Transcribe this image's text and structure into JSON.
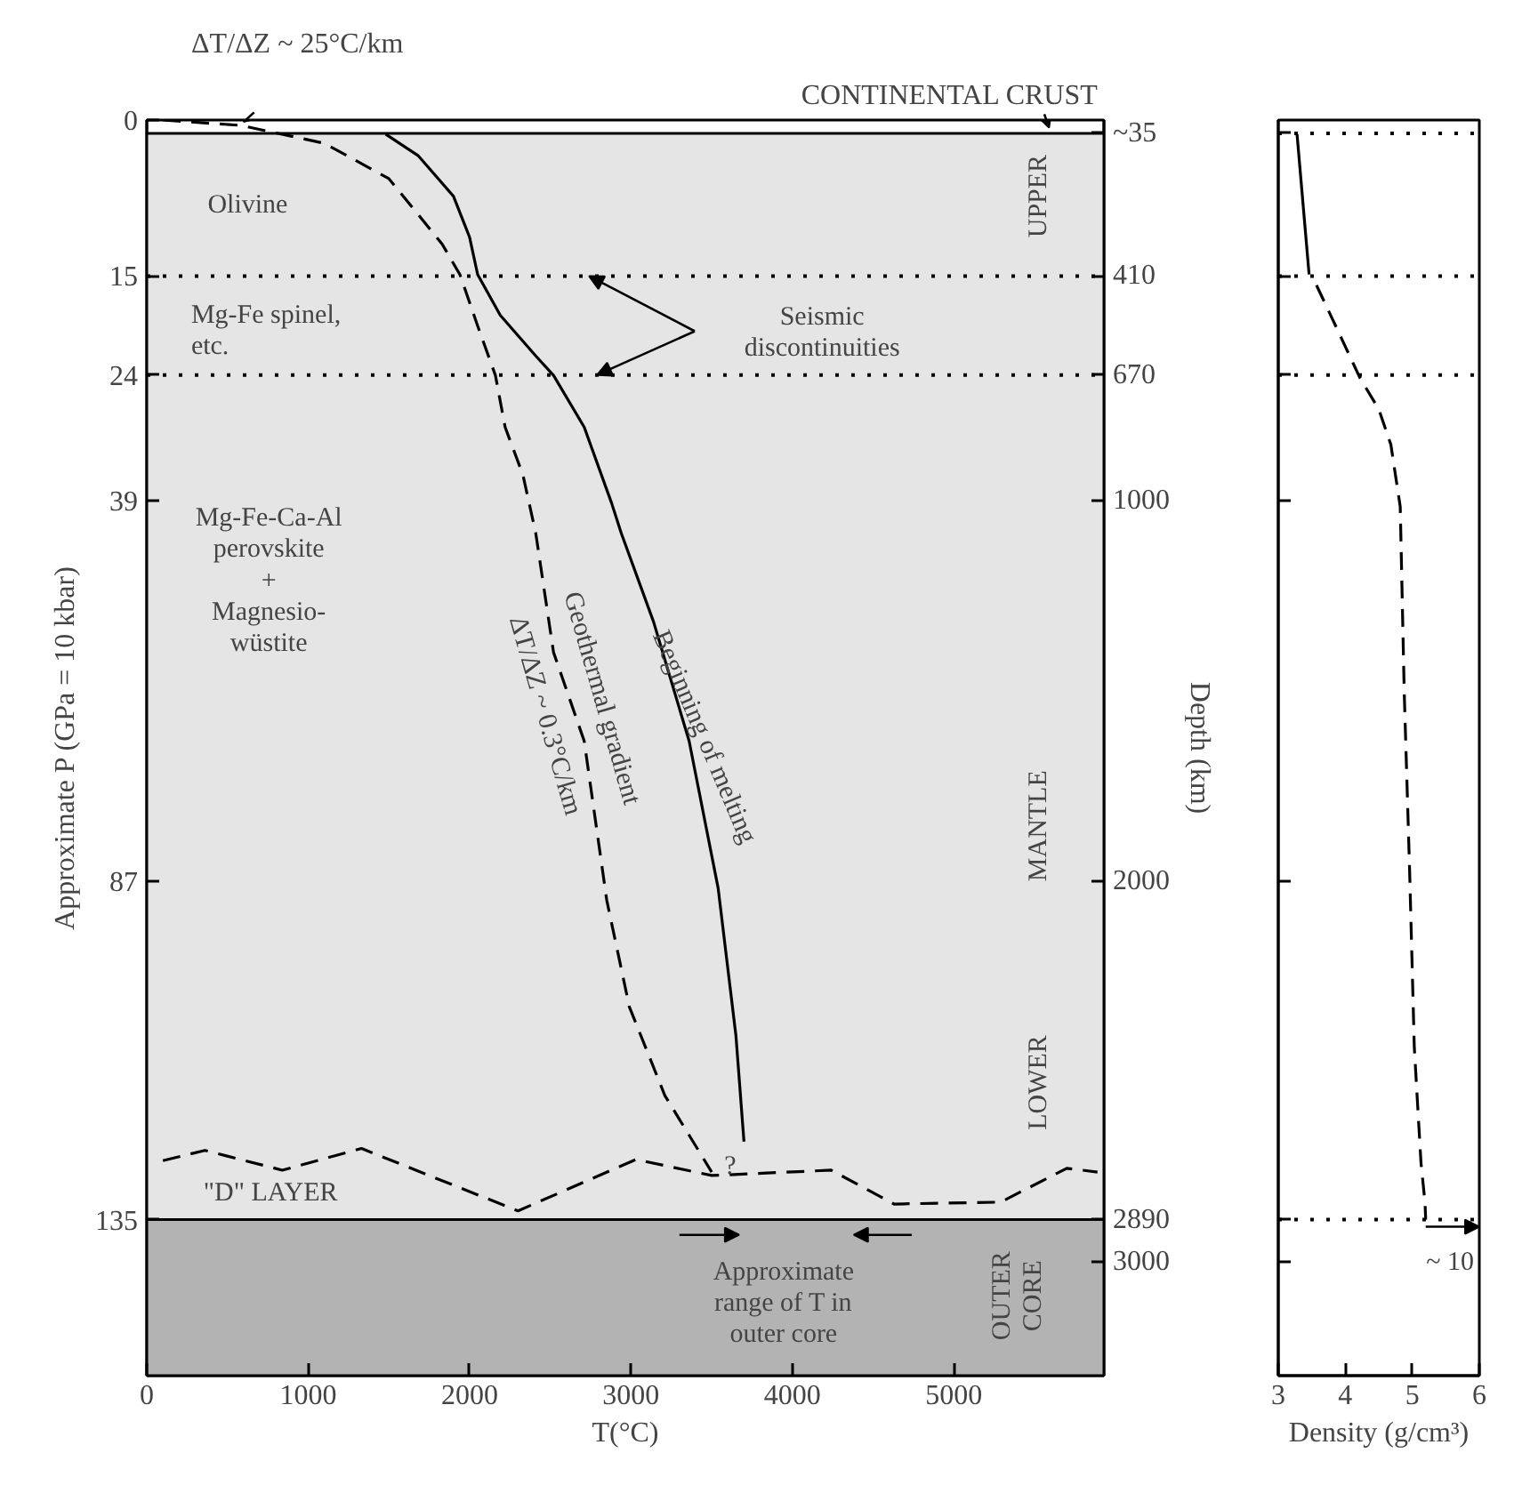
{
  "chart_data": [
    {
      "type": "line",
      "xlabel": "T(°C)",
      "ylabel": "Depth (km)",
      "xlim": [
        0,
        5930
      ],
      "xticks": [
        0,
        1000,
        2000,
        3000,
        4000,
        5000
      ],
      "ylim": [
        3300,
        0
      ],
      "yticks": [
        {
          "value": 35,
          "label": "~35"
        },
        410,
        670,
        1000,
        2000,
        2890,
        3000
      ],
      "series": [
        {
          "color": "#000000",
          "line_style": "solid",
          "x": [
            1480,
            1680,
            1900,
            2000,
            2050,
            2190,
            2410,
            2520,
            2710,
            2880,
            2940,
            3140,
            3360,
            3540,
            3650,
            3700
          ],
          "values": [
            37,
            93,
            200,
            308,
            406,
            513,
            620,
            671,
            807,
            1007,
            1086,
            1319,
            1632,
            2019,
            2406,
            2685
          ]
        },
        {
          "color": "#000000",
          "line_style": "dashed",
          "x": [
            100,
            580,
            1100,
            1500,
            1830,
            1940,
            2050,
            2160,
            2220,
            2330,
            2410,
            2520,
            2710,
            2850,
            2990,
            3210,
            3500
          ],
          "values": [
            0,
            14,
            61,
            154,
            326,
            406,
            541,
            671,
            807,
            932,
            1086,
            1399,
            1632,
            2051,
            2331,
            2564,
            2765
          ]
        },
        {
          "color": "#000000",
          "line_style": "dashed",
          "x": [
            100,
            360,
            840,
            1330,
            2300,
            3030,
            3500,
            4240,
            4630,
            5290,
            5700,
            5890
          ],
          "values": [
            2735,
            2708,
            2760,
            2703,
            2867,
            2732,
            2774,
            2760,
            2849,
            2844,
            2755,
            2765
          ]
        }
      ],
      "bands": [
        {
          "axis": "y",
          "from": 35,
          "to": 2890,
          "color": "#e5e5e5"
        },
        {
          "axis": "y",
          "from": 2890,
          "to": 3300,
          "color": "#b3b3b3"
        }
      ],
      "ref_lines": [
        {
          "axis": "y",
          "value": 410,
          "line_style": "dotted"
        },
        {
          "axis": "y",
          "value": 670,
          "line_style": "dotted"
        },
        {
          "axis": "y",
          "value": 35,
          "line_style": "solid"
        },
        {
          "axis": "y",
          "value": 2890,
          "line_style": "solid"
        }
      ],
      "annotations": [
        "ΔT/ΔZ ~ 25°C/km",
        "CONTINENTAL CRUST",
        "Seismic\ndiscontinuities",
        "Olivine",
        "Mg-Fe spinel,\netc.",
        "Mg-Fe-Ca-Al\nperovskite\n+\nMagnesio-\nwüstite",
        "Beginning of melting",
        "Geothermal gradient",
        "ΔT/ΔZ ~ 0.3°C/km",
        "?",
        "\"D\" LAYER",
        "UPPER",
        "MANTLE",
        "LOWER",
        "OUTER\nCORE",
        "Approximate\nrange of T in\nouter core",
        "Approximate P (GPa = 10 kbar)",
        "0",
        "15",
        "24",
        "39",
        "87",
        "135"
      ]
    },
    {
      "type": "line",
      "xlabel": "Density (g/cm³)",
      "xlim": [
        3,
        6
      ],
      "xticks": [
        3,
        4,
        5,
        6
      ],
      "ylim": [
        3300,
        0
      ],
      "yticks": [
        35,
        410,
        670,
        1000,
        2000,
        2890,
        3000
      ],
      "tick_labels": "x",
      "series": [
        {
          "color": "#000000",
          "line_style": "solid",
          "x": [
            3.28,
            3.46
          ],
          "values": [
            37,
            406
          ]
        },
        {
          "color": "#000000",
          "line_style": "dashed",
          "x": [
            3.57,
            3.88,
            4.22,
            4.5,
            4.68,
            4.82,
            4.88,
            4.96,
            5.03,
            5.13,
            5.19,
            5.2
          ],
          "values": [
            434,
            550,
            678,
            760,
            853,
            1016,
            1506,
            1972,
            2438,
            2741,
            2846,
            2890
          ]
        }
      ],
      "ref_lines": [
        {
          "axis": "y",
          "value": 35,
          "line_style": "dotted"
        },
        {
          "axis": "y",
          "value": 410,
          "line_style": "dotted"
        },
        {
          "axis": "y",
          "value": 670,
          "line_style": "dotted"
        },
        {
          "axis": "y",
          "value": 2890,
          "line_style": "dotted"
        }
      ],
      "annotations": [
        {
          "text": "~ 10",
          "x": 6,
          "y": 2890
        }
      ]
    }
  ]
}
